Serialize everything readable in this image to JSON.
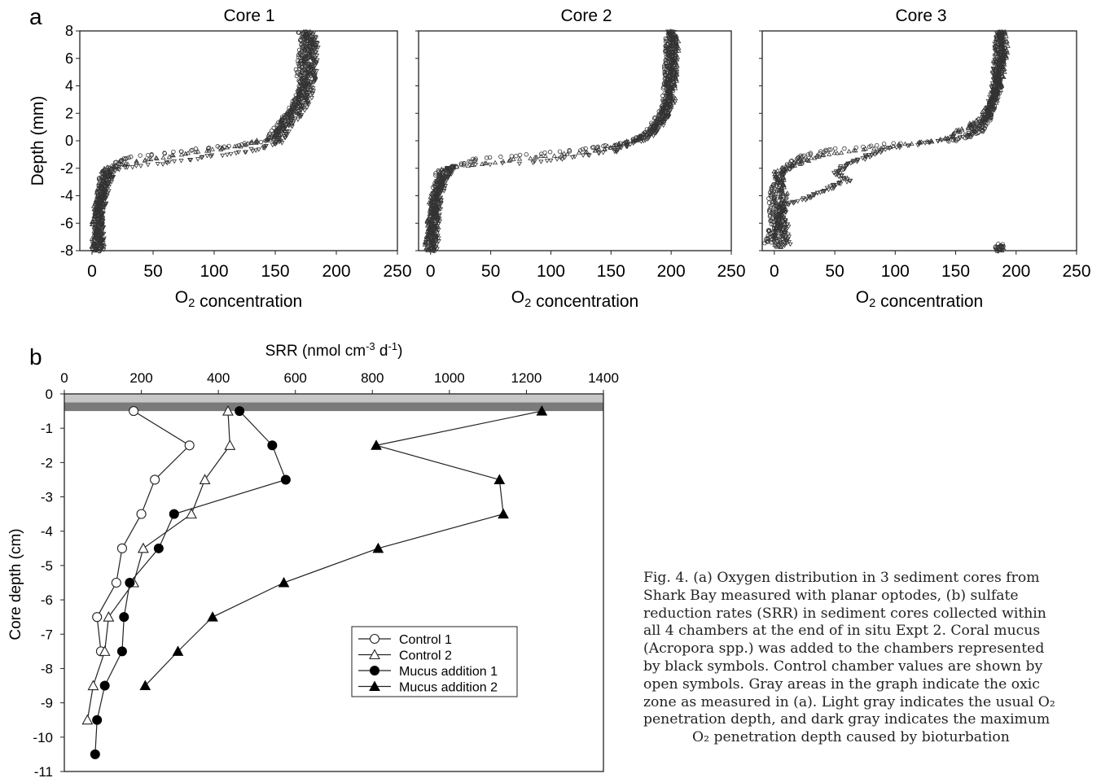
{
  "panel_a_letter": "a",
  "panel_b_letter": "b",
  "chart_data": [
    {
      "type": "scatter",
      "title": "Core 1",
      "xlabel": "O2 concentration",
      "ylabel": "Depth  (mm)",
      "xlim": [
        -10,
        250
      ],
      "ylim": [
        -8,
        8
      ],
      "xticks": [
        0,
        50,
        100,
        150,
        200,
        250
      ],
      "yticks": [
        -8,
        -6,
        -4,
        -2,
        0,
        2,
        4,
        6,
        8
      ],
      "series": [
        {
          "profile": [
            [
              5,
              -8
            ],
            [
              5,
              -6
            ],
            [
              7,
              -4
            ],
            [
              10,
              -2.3
            ],
            [
              30,
              -1.2
            ],
            [
              100,
              -0.5
            ],
            [
              145,
              0
            ],
            [
              152,
              1
            ],
            [
              162,
              2
            ],
            [
              168,
              3
            ],
            [
              172,
              4
            ],
            [
              170,
              5
            ],
            [
              172,
              6
            ],
            [
              174,
              7
            ],
            [
              172,
              8
            ]
          ]
        },
        {
          "profile": [
            [
              3,
              -8
            ],
            [
              3,
              -6
            ],
            [
              6,
              -4
            ],
            [
              12,
              -2
            ],
            [
              50,
              -1.3
            ],
            [
              120,
              -0.4
            ],
            [
              150,
              0.3
            ],
            [
              158,
              1.5
            ],
            [
              166,
              2.5
            ],
            [
              172,
              3.5
            ],
            [
              176,
              5
            ],
            [
              176,
              6
            ],
            [
              178,
              7
            ],
            [
              176,
              8
            ]
          ]
        },
        {
          "profile": [
            [
              7,
              -8
            ],
            [
              6,
              -6
            ],
            [
              9,
              -4
            ],
            [
              16,
              -2.1
            ],
            [
              60,
              -1.6
            ],
            [
              130,
              -0.7
            ],
            [
              152,
              -0.2
            ],
            [
              160,
              1
            ],
            [
              170,
              2
            ],
            [
              176,
              3
            ],
            [
              180,
              4.5
            ],
            [
              181,
              6
            ],
            [
              182,
              7
            ],
            [
              178,
              8
            ]
          ]
        }
      ]
    },
    {
      "type": "scatter",
      "title": "Core 2",
      "xlabel": "O2 concentration",
      "xlim": [
        -10,
        250
      ],
      "ylim": [
        -8,
        8
      ],
      "xticks": [
        0,
        50,
        100,
        150,
        200,
        250
      ],
      "series": [
        {
          "profile": [
            [
              0,
              -8
            ],
            [
              2,
              -6
            ],
            [
              4,
              -4
            ],
            [
              8,
              -2.2
            ],
            [
              40,
              -1.3
            ],
            [
              120,
              -0.7
            ],
            [
              170,
              0
            ],
            [
              185,
              1
            ],
            [
              195,
              2.5
            ],
            [
              197,
              4
            ],
            [
              198,
              6
            ],
            [
              199,
              8
            ]
          ]
        },
        {
          "profile": [
            [
              -2,
              -8
            ],
            [
              0,
              -6
            ],
            [
              3,
              -4
            ],
            [
              12,
              -2
            ],
            [
              60,
              -1.5
            ],
            [
              140,
              -0.7
            ],
            [
              175,
              0.2
            ],
            [
              190,
              1.3
            ],
            [
              200,
              3
            ],
            [
              202,
              5
            ],
            [
              203,
              7
            ],
            [
              202,
              8
            ]
          ]
        },
        {
          "profile": [
            [
              3,
              -8
            ],
            [
              4,
              -6
            ],
            [
              6,
              -4
            ],
            [
              18,
              -1.8
            ],
            [
              80,
              -1.6
            ],
            [
              150,
              -0.8
            ],
            [
              185,
              0.4
            ],
            [
              195,
              1.8
            ],
            [
              198,
              3.5
            ],
            [
              200,
              5.5
            ],
            [
              201,
              7
            ],
            [
              200,
              8
            ]
          ]
        }
      ]
    },
    {
      "type": "scatter",
      "title": "Core 3",
      "xlabel": "O2 concentration",
      "xlim": [
        -10,
        250
      ],
      "ylim": [
        -8,
        8
      ],
      "xticks": [
        0,
        50,
        100,
        150,
        200,
        250
      ],
      "series": [
        {
          "profile": [
            [
              -5,
              -7.5
            ],
            [
              0,
              -6
            ],
            [
              -2,
              -4
            ],
            [
              5,
              -2.5
            ],
            [
              20,
              -1.2
            ],
            [
              50,
              -0.6
            ],
            [
              100,
              -0.2
            ],
            [
              150,
              0
            ],
            [
              172,
              0.8
            ],
            [
              180,
              2.5
            ],
            [
              185,
              4
            ],
            [
              187,
              6
            ],
            [
              186,
              8
            ]
          ]
        },
        {
          "profile": [
            [
              2,
              -7.8
            ],
            [
              4,
              -6
            ],
            [
              8,
              -4
            ],
            [
              3,
              -2.2
            ],
            [
              40,
              -1
            ],
            [
              90,
              -0.5
            ],
            [
              140,
              0.1
            ],
            [
              170,
              1.5
            ],
            [
              182,
              3
            ],
            [
              188,
              5
            ],
            [
              190,
              7
            ],
            [
              188,
              8
            ]
          ]
        },
        {
          "profile": [
            [
              10,
              -7.6
            ],
            [
              8,
              -5.8
            ],
            [
              6,
              -4.8
            ],
            [
              40,
              -3.7
            ],
            [
              60,
              -2.9
            ],
            [
              50,
              -2.3
            ],
            [
              60,
              -1.8
            ],
            [
              90,
              -0.6
            ],
            [
              160,
              0.3
            ],
            [
              178,
              2
            ],
            [
              183,
              4
            ],
            [
              185,
              6
            ],
            [
              186,
              8
            ]
          ]
        }
      ]
    },
    {
      "type": "line",
      "title": "",
      "xlabel": "SRR (nmol cm⁻³ d⁻¹)",
      "ylabel": "Core depth (cm)",
      "xlim": [
        0,
        1400
      ],
      "ylim": [
        -11,
        0
      ],
      "xticks": [
        0,
        200,
        400,
        600,
        800,
        1000,
        1200,
        1400
      ],
      "yticks": [
        0,
        -1,
        -2,
        -3,
        -4,
        -5,
        -6,
        -7,
        -8,
        -9,
        -10,
        -11
      ],
      "oxic_zone": {
        "light_gray_depth": -0.5,
        "dark_gray_band": [
          -0.25,
          -0.5
        ]
      },
      "legend_position": "bottom-right",
      "series": [
        {
          "name": "Control 1",
          "marker": "open-circle",
          "points": [
            [
              180,
              -0.5
            ],
            [
              325,
              -1.5
            ],
            [
              235,
              -2.5
            ],
            [
              200,
              -3.5
            ],
            [
              150,
              -4.5
            ],
            [
              135,
              -5.5
            ],
            [
              85,
              -6.5
            ],
            [
              95,
              -7.5
            ]
          ]
        },
        {
          "name": "Control 2",
          "marker": "open-triangle",
          "points": [
            [
              425,
              -0.5
            ],
            [
              430,
              -1.5
            ],
            [
              365,
              -2.5
            ],
            [
              330,
              -3.5
            ],
            [
              205,
              -4.5
            ],
            [
              180,
              -5.5
            ],
            [
              115,
              -6.5
            ],
            [
              105,
              -7.5
            ],
            [
              75,
              -8.5
            ],
            [
              60,
              -9.5
            ]
          ]
        },
        {
          "name": "Mucus addition 1",
          "marker": "filled-circle",
          "points": [
            [
              455,
              -0.5
            ],
            [
              540,
              -1.5
            ],
            [
              575,
              -2.5
            ],
            [
              285,
              -3.5
            ],
            [
              245,
              -4.5
            ],
            [
              170,
              -5.5
            ],
            [
              155,
              -6.5
            ],
            [
              150,
              -7.5
            ],
            [
              105,
              -8.5
            ],
            [
              85,
              -9.5
            ],
            [
              80,
              -10.5
            ]
          ]
        },
        {
          "name": "Mucus addition 2",
          "marker": "filled-triangle",
          "points": [
            [
              1240,
              -0.5
            ],
            [
              810,
              -1.5
            ],
            [
              1130,
              -2.5
            ],
            [
              1140,
              -3.5
            ],
            [
              815,
              -4.5
            ],
            [
              570,
              -5.5
            ],
            [
              385,
              -6.5
            ],
            [
              295,
              -7.5
            ],
            [
              210,
              -8.5
            ]
          ]
        }
      ]
    }
  ],
  "caption_lines": [
    "Fig. 4. (a) Oxygen distribution in 3 sediment cores from",
    "Shark Bay measured with planar optodes, (b) sulfate",
    "reduction rates (SRR) in sediment cores collected within",
    "all 4 chambers at the end of in situ Expt 2. Coral mucus",
    "(Acropora spp.) was added to the chambers represented",
    "by black symbols. Control chamber values are shown by",
    "open symbols. Gray areas in the graph indicate the oxic",
    "zone as measured in (a). Light gray indicates the usual O₂",
    "penetration depth, and dark gray indicates the maximum",
    "O₂ penetration depth caused by bioturbation"
  ]
}
